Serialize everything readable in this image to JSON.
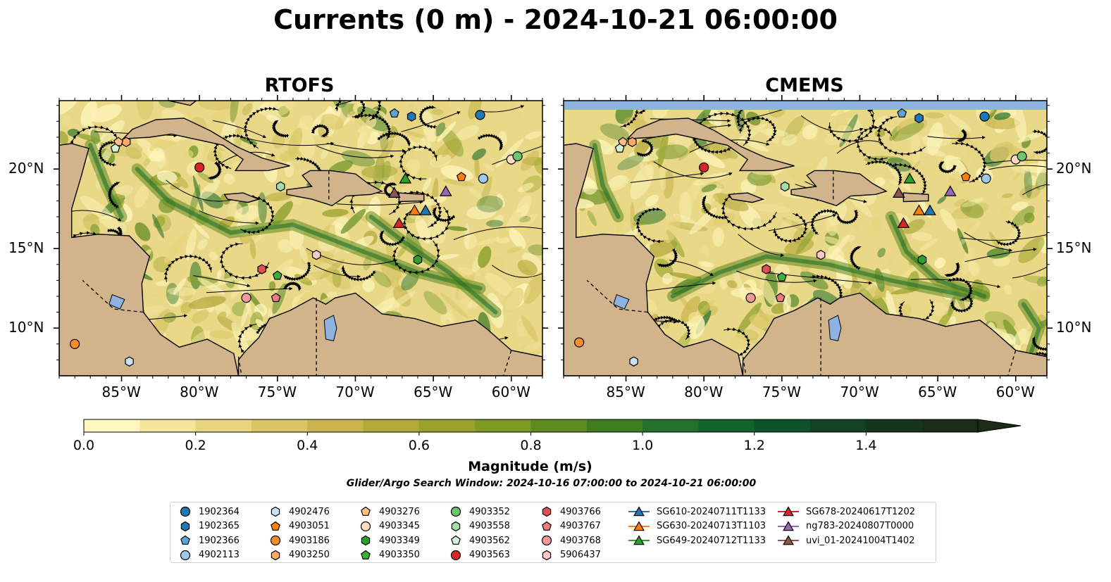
{
  "title": "Currents (0 m) - 2024-10-21 06:00:00",
  "panels": [
    {
      "title": "RTOFS"
    },
    {
      "title": "CMEMS"
    }
  ],
  "axes": {
    "lon_ticks": [
      "85°W",
      "80°W",
      "75°W",
      "70°W",
      "65°W",
      "60°W"
    ],
    "lat_ticks": [
      "20°N",
      "15°N",
      "10°N"
    ]
  },
  "colorbar": {
    "label": "Magnitude (m/s)",
    "ticks": [
      "0.0",
      "0.2",
      "0.4",
      "0.6",
      "0.8",
      "1.0",
      "1.2",
      "1.4"
    ],
    "colors": [
      "#fff7bf",
      "#f3e59b",
      "#e6d47e",
      "#d8c565",
      "#c9b44e",
      "#b3a83a",
      "#9aa22c",
      "#7f9a23",
      "#5f8a1f",
      "#3f7d22",
      "#23702b",
      "#14612e",
      "#0f5128",
      "#124222",
      "#17351d",
      "#1b2b18"
    ]
  },
  "search_window": "Glider/Argo Search Window: 2024-10-16 07:00:00 to 2024-10-21 06:00:00",
  "legend": {
    "columns": [
      [
        {
          "label": "1902364",
          "marker": "circle",
          "color": "#1f77b4"
        },
        {
          "label": "1902365",
          "marker": "hexagon",
          "color": "#1f77b4"
        },
        {
          "label": "1902366",
          "marker": "pentagon",
          "color": "#5fa2d6"
        },
        {
          "label": "4902113",
          "marker": "circle",
          "color": "#9ec9ea"
        }
      ],
      [
        {
          "label": "4902476",
          "marker": "hexagon",
          "color": "#c6e2f5"
        },
        {
          "label": "4903051",
          "marker": "pentagon",
          "color": "#ff7f0e"
        },
        {
          "label": "4903186",
          "marker": "circle",
          "color": "#ff8c2b"
        },
        {
          "label": "4903250",
          "marker": "hexagon",
          "color": "#ffab63"
        }
      ],
      [
        {
          "label": "4903276",
          "marker": "pentagon",
          "color": "#ffbf86"
        },
        {
          "label": "4903345",
          "marker": "circle",
          "color": "#ffdcbf"
        },
        {
          "label": "4903349",
          "marker": "hexagon",
          "color": "#2ca02c"
        },
        {
          "label": "4903350",
          "marker": "pentagon",
          "color": "#3cae3c"
        }
      ],
      [
        {
          "label": "4903352",
          "marker": "circle",
          "color": "#6cc76c"
        },
        {
          "label": "4903558",
          "marker": "hexagon",
          "color": "#a5dea5"
        },
        {
          "label": "4903562",
          "marker": "pentagon",
          "color": "#d6f2d6"
        },
        {
          "label": "4903563",
          "marker": "circle",
          "color": "#d62728"
        }
      ],
      [
        {
          "label": "4903766",
          "marker": "hexagon",
          "color": "#e05050"
        },
        {
          "label": "4903767",
          "marker": "pentagon",
          "color": "#f07b7b"
        },
        {
          "label": "4903768",
          "marker": "circle",
          "color": "#f59a9a"
        },
        {
          "label": "5906437",
          "marker": "hexagon",
          "color": "#fcc8c8"
        }
      ],
      [
        {
          "label": "SG610-20240711T1133",
          "marker": "triangle",
          "color": "#1f77b4"
        },
        {
          "label": "SG630-20240713T1103",
          "marker": "triangle",
          "color": "#ff7f0e"
        },
        {
          "label": "SG649-20240712T1133",
          "marker": "triangle",
          "color": "#2ca02c"
        }
      ],
      [
        {
          "label": "SG678-20240617T1202",
          "marker": "triangle",
          "color": "#d62728"
        },
        {
          "label": "ng783-20240807T0000",
          "marker": "triangle",
          "color": "#9467bd"
        },
        {
          "label": "uvi_01-20241004T1402",
          "marker": "triangle",
          "color": "#8c564b"
        }
      ]
    ]
  },
  "map_colors": {
    "land": "#d1b48c",
    "ocean_base": "#e8d887",
    "lake": "#8fb3e0",
    "streamline": "#000000"
  },
  "floats_rtofs": [
    {
      "id": "1902364",
      "lon": -62,
      "lat": 23.4
    },
    {
      "id": "1902365",
      "lon": -66.4,
      "lat": 23.3
    },
    {
      "id": "1902366",
      "lon": -67.5,
      "lat": 23.5
    },
    {
      "id": "4902113",
      "lon": -61.8,
      "lat": 19.4
    },
    {
      "id": "4902476",
      "lon": -84.5,
      "lat": 7.9
    },
    {
      "id": "4903051",
      "lon": -63.2,
      "lat": 19.5
    },
    {
      "id": "4903186",
      "lon": -88,
      "lat": 9.0
    },
    {
      "id": "4903250",
      "lon": -84.7,
      "lat": 21.7
    },
    {
      "id": "4903276",
      "lon": -85.2,
      "lat": 21.7
    },
    {
      "id": "4903345",
      "lon": -60,
      "lat": 20.6
    },
    {
      "id": "4903349",
      "lon": -66,
      "lat": 14.3
    },
    {
      "id": "4903350",
      "lon": -75,
      "lat": 13.3
    },
    {
      "id": "4903352",
      "lon": -59.6,
      "lat": 20.8
    },
    {
      "id": "4903558",
      "lon": -74.8,
      "lat": 18.9
    },
    {
      "id": "4903562",
      "lon": -85.4,
      "lat": 21.3
    },
    {
      "id": "4903563",
      "lon": -80,
      "lat": 20.1
    },
    {
      "id": "4903766",
      "lon": -76,
      "lat": 13.7
    },
    {
      "id": "4903767",
      "lon": -75.1,
      "lat": 11.9
    },
    {
      "id": "4903768",
      "lon": -77,
      "lat": 11.9
    },
    {
      "id": "5906437",
      "lon": -72.5,
      "lat": 14.6
    }
  ],
  "floats_cmems": [
    {
      "id": "1902364",
      "lon": -62,
      "lat": 23.3
    },
    {
      "id": "1902365",
      "lon": -66.2,
      "lat": 23.2
    },
    {
      "id": "1902366",
      "lon": -67.3,
      "lat": 23.5
    },
    {
      "id": "4902113",
      "lon": -61.9,
      "lat": 19.4
    },
    {
      "id": "4902476",
      "lon": -84.5,
      "lat": 7.9
    },
    {
      "id": "4903051",
      "lon": -63.2,
      "lat": 19.5
    },
    {
      "id": "4903186",
      "lon": -88,
      "lat": 9.1
    },
    {
      "id": "4903250",
      "lon": -84.6,
      "lat": 21.7
    },
    {
      "id": "4903276",
      "lon": -85.2,
      "lat": 21.7
    },
    {
      "id": "4903345",
      "lon": -60,
      "lat": 20.6
    },
    {
      "id": "4903349",
      "lon": -66,
      "lat": 14.3
    },
    {
      "id": "4903350",
      "lon": -75,
      "lat": 13.2
    },
    {
      "id": "4903352",
      "lon": -59.6,
      "lat": 20.8
    },
    {
      "id": "4903558",
      "lon": -74.8,
      "lat": 18.9
    },
    {
      "id": "4903562",
      "lon": -85.4,
      "lat": 21.3
    },
    {
      "id": "4903563",
      "lon": -80,
      "lat": 20.1
    },
    {
      "id": "4903766",
      "lon": -76,
      "lat": 13.7
    },
    {
      "id": "4903767",
      "lon": -75.1,
      "lat": 11.9
    },
    {
      "id": "4903768",
      "lon": -77,
      "lat": 11.9
    },
    {
      "id": "5906437",
      "lon": -72.5,
      "lat": 14.6
    }
  ],
  "gliders": [
    {
      "id": "SG610-20240711T1133",
      "lon": -65.5,
      "lat": 17.4
    },
    {
      "id": "SG630-20240713T1103",
      "lon": -66.2,
      "lat": 17.4
    },
    {
      "id": "SG649-20240712T1133",
      "lon": -66.8,
      "lat": 19.4
    },
    {
      "id": "SG678-20240617T1202",
      "lon": -67.2,
      "lat": 16.6
    },
    {
      "id": "ng783-20240807T0000",
      "lon": -64.2,
      "lat": 18.6
    },
    {
      "id": "uvi_01-20241004T1402",
      "lon": -67.5,
      "lat": 18.5
    }
  ]
}
